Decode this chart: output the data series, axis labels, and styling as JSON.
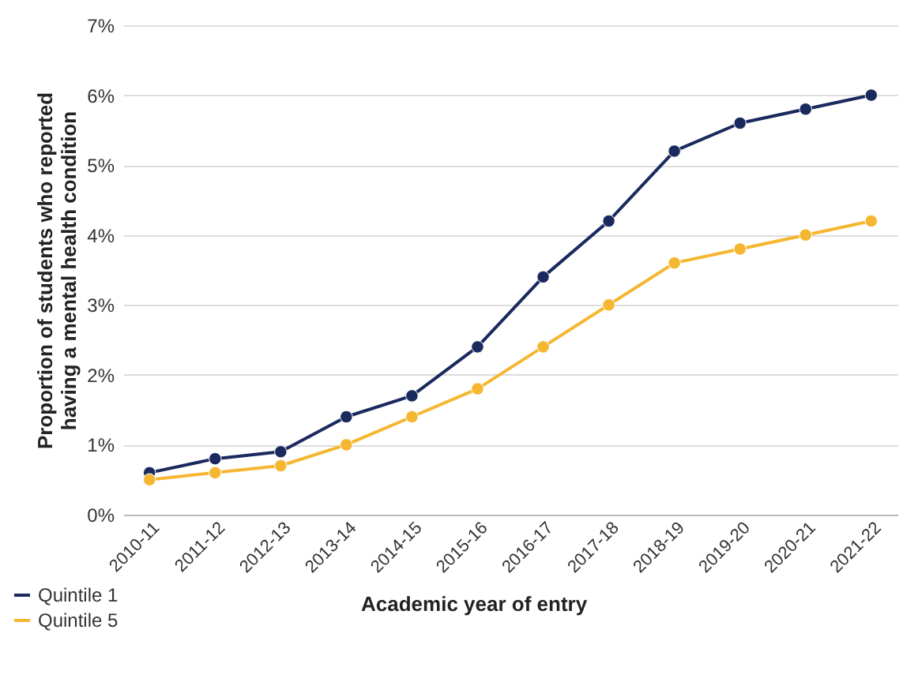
{
  "chart_data": {
    "type": "line",
    "xlabel": "Academic year of entry",
    "ylabel": "Proportion of students who reported having a mental health condition",
    "categories": [
      "2010-11",
      "2011-12",
      "2012-13",
      "2013-14",
      "2014-15",
      "2015-16",
      "2016-17",
      "2017-18",
      "2018-19",
      "2019-20",
      "2020-21",
      "2021-22"
    ],
    "series": [
      {
        "name": "Quintile 1",
        "color": "#1b2a5e",
        "values": [
          0.6,
          0.8,
          0.9,
          1.4,
          1.7,
          2.4,
          3.4,
          4.2,
          5.2,
          5.6,
          5.8,
          6.0
        ]
      },
      {
        "name": "Quintile 5",
        "color": "#f5b731",
        "values": [
          0.5,
          0.6,
          0.7,
          1.0,
          1.4,
          1.8,
          2.4,
          3.0,
          3.6,
          3.8,
          4.0,
          4.2
        ]
      }
    ],
    "ylim": [
      0,
      7
    ],
    "yticks": [
      {
        "value": 0,
        "label": "0%"
      },
      {
        "value": 1,
        "label": "1%"
      },
      {
        "value": 2,
        "label": "2%"
      },
      {
        "value": 3,
        "label": "3%"
      },
      {
        "value": 4,
        "label": "4%"
      },
      {
        "value": 5,
        "label": "5%"
      },
      {
        "value": 6,
        "label": "6%"
      },
      {
        "value": 7,
        "label": "7%"
      }
    ],
    "grid": "y",
    "legend": "bottom",
    "marker": "circle",
    "line_style": "solid"
  }
}
